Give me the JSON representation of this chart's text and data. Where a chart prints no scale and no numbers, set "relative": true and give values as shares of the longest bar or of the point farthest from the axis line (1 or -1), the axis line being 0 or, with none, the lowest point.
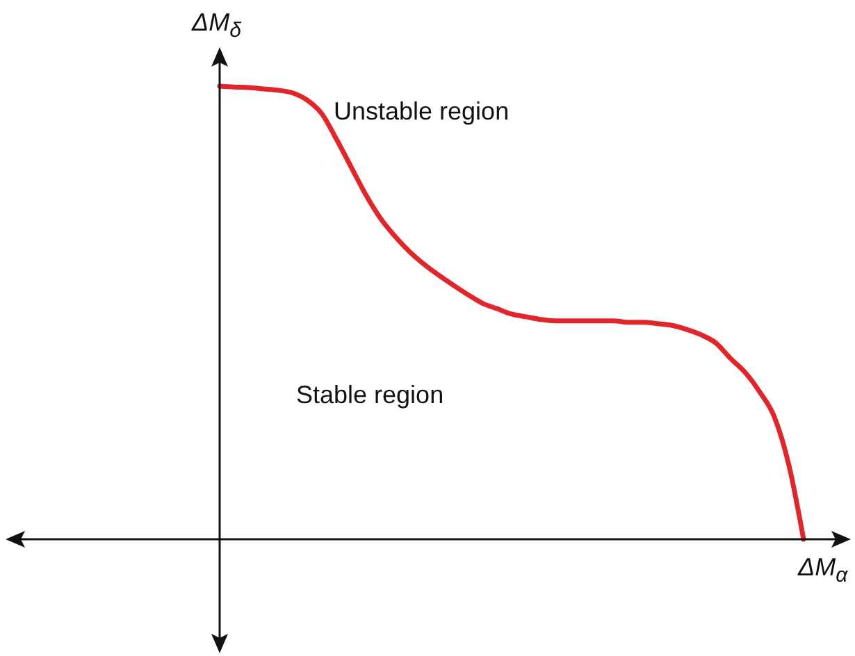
{
  "chart_data": {
    "type": "line",
    "relative": true,
    "xlabel": "ΔM$_{α}$",
    "ylabel": "ΔM$_{δ}$",
    "annotations": [
      "Unstable region",
      "Stable region"
    ],
    "categories": [
      null,
      null,
      null,
      null,
      null,
      null,
      null,
      null,
      null,
      null,
      null,
      null,
      null,
      null,
      null,
      null,
      null,
      null,
      null,
      null,
      null,
      null,
      null,
      null,
      null,
      null,
      null,
      null,
      null,
      null,
      null,
      null,
      null,
      null,
      null,
      null,
      null,
      null,
      null,
      null,
      null
    ],
    "line_style": "solid",
    "series": [
      {
        "color": "#e0262b",
        "values": [
          1.0,
          0.998,
          0.997,
          0.994,
          0.991,
          0.985,
          0.969,
          0.939,
          0.883,
          0.822,
          0.761,
          0.709,
          0.669,
          0.635,
          0.607,
          0.583,
          0.561,
          0.54,
          0.521,
          0.509,
          0.497,
          0.491,
          0.485,
          0.482,
          0.482,
          0.482,
          0.482,
          0.482,
          0.479,
          0.479,
          0.476,
          0.472,
          0.463,
          0.451,
          0.433,
          0.399,
          0.368,
          0.325,
          0.27,
          0.163,
          0.0
        ]
      }
    ]
  }
}
